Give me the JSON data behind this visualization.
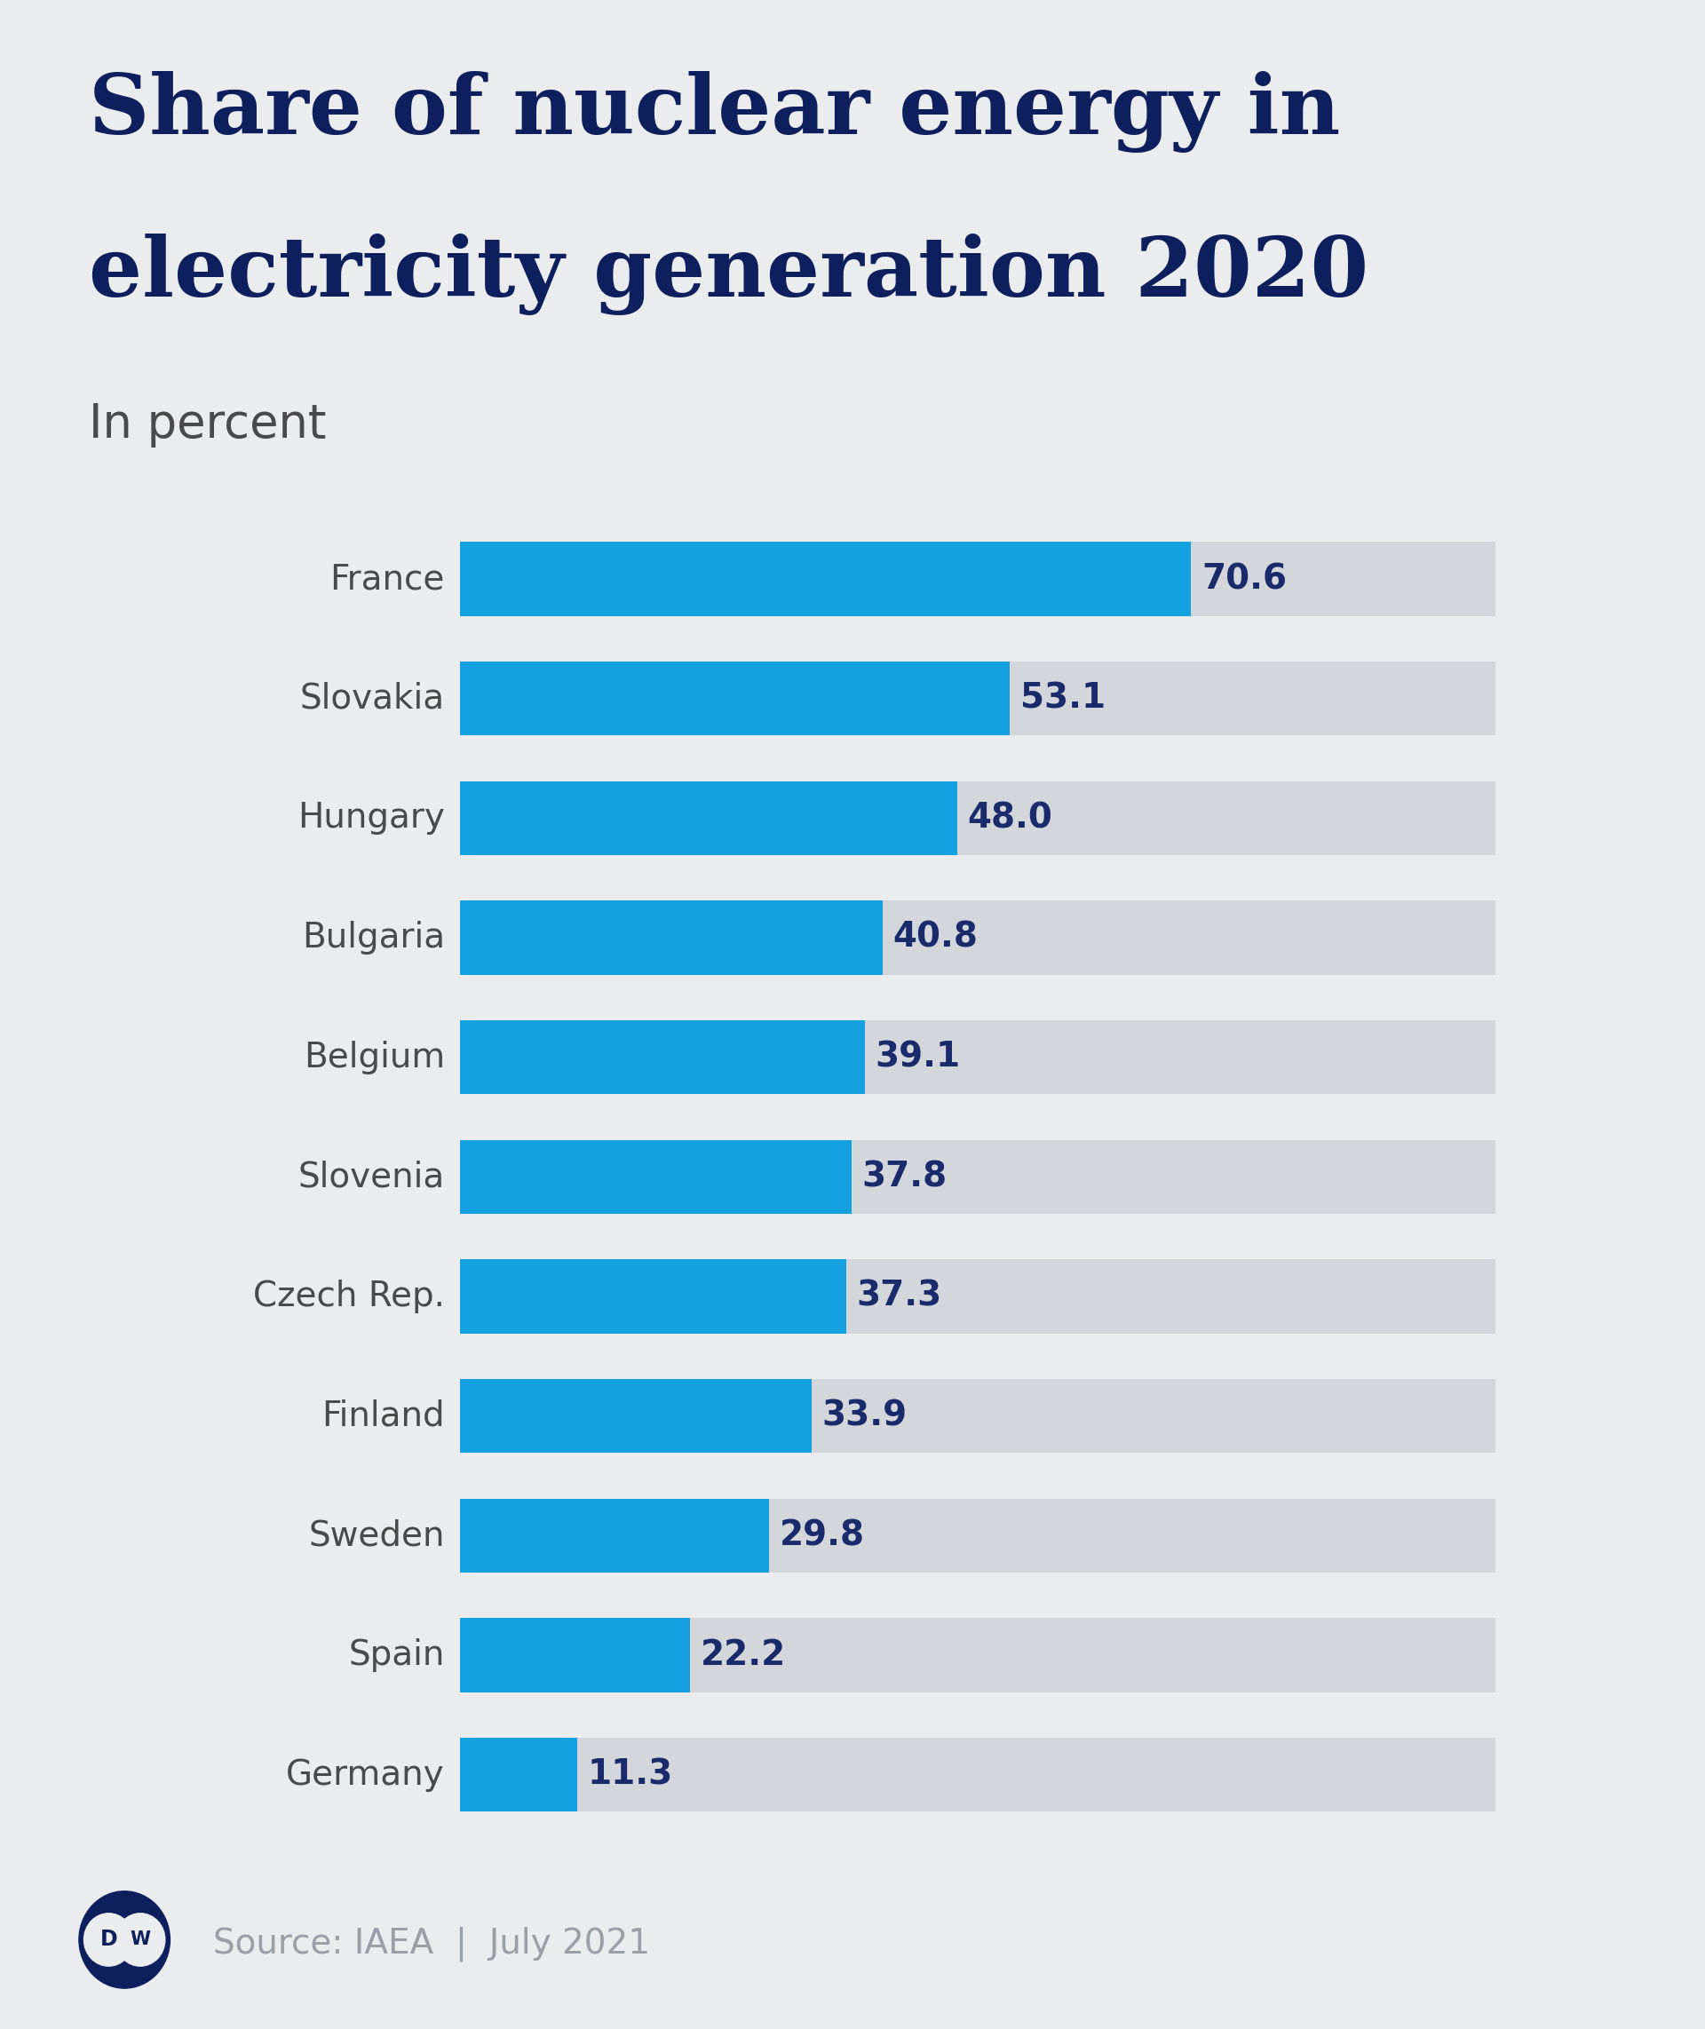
{
  "title_line1": "Share of nuclear energy in",
  "title_line2": "electricity generation 2020",
  "subtitle": "In percent",
  "source": "Source: IAEA  |  July 2021",
  "countries": [
    "France",
    "Slovakia",
    "Hungary",
    "Bulgaria",
    "Belgium",
    "Slovenia",
    "Czech Rep.",
    "Finland",
    "Sweden",
    "Spain",
    "Germany"
  ],
  "values": [
    70.6,
    53.1,
    48.0,
    40.8,
    39.1,
    37.8,
    37.3,
    33.9,
    29.8,
    22.2,
    11.3
  ],
  "max_value": 100,
  "bar_color": "#15A0E0",
  "bg_bar_color": "#D3D6DA",
  "background_color": "#EAECEE",
  "title_color": "#0D1F5C",
  "subtitle_color": "#4A4A4A",
  "value_color": "#1A2B6B",
  "country_color": "#4A4A4A",
  "source_color": "#9A9FA8",
  "dw_color": "#0D1F5C"
}
